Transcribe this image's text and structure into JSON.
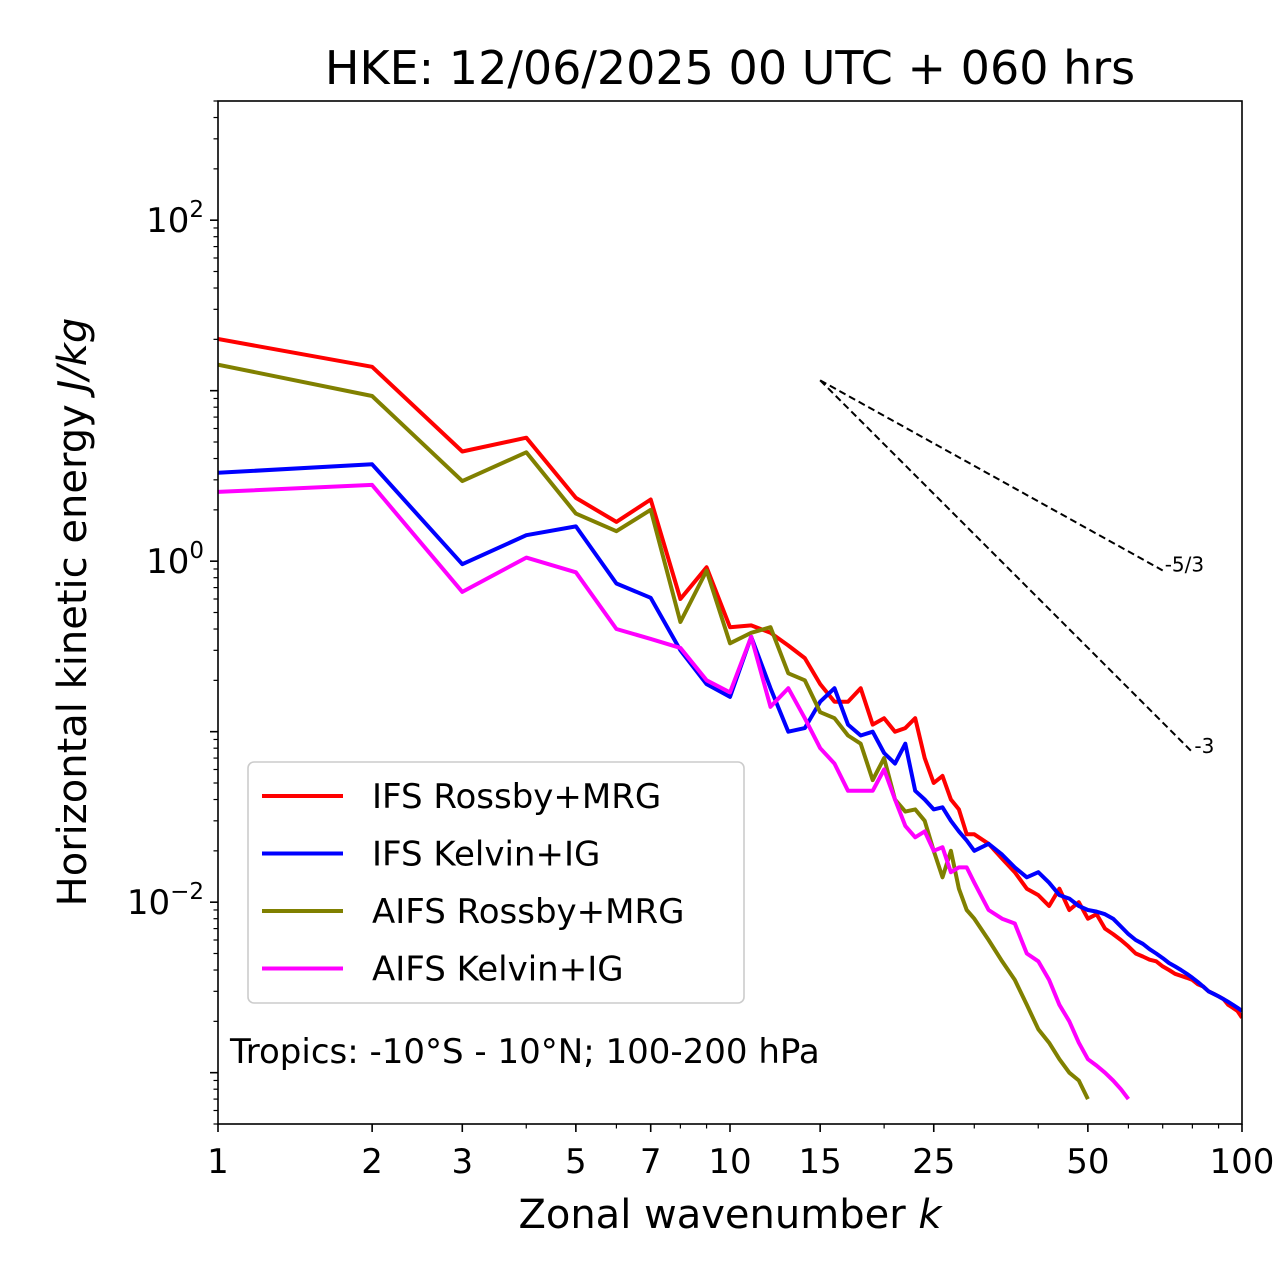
{
  "chart_data": {
    "type": "line",
    "title": "HKE: 12/06/2025 00 UTC + 060 hrs",
    "xlabel_main": "Zonal wavenumber ",
    "xlabel_italic": "k",
    "ylabel_main": "Horizontal kinetic energy ",
    "ylabel_italic": "J/kg",
    "xscale": "log",
    "yscale": "log",
    "xlim": [
      1,
      100
    ],
    "ylim": [
      0.0005,
      500
    ],
    "xticks": [
      1,
      2,
      3,
      5,
      7,
      10,
      15,
      25,
      50,
      100
    ],
    "xtick_labels": [
      "1",
      "2",
      "3",
      "5",
      "7",
      "10",
      "15",
      "25",
      "50",
      "100"
    ],
    "yticks": [
      {
        "value": 100,
        "base": "10",
        "exp": "2"
      },
      {
        "value": 1,
        "base": "10",
        "exp": "0"
      },
      {
        "value": 0.01,
        "base": "10",
        "exp": "−2"
      }
    ],
    "annotation": "Tropics: -10°S - 10°N; 100-200 hPa",
    "legend_position": "lower-left",
    "reference_lines": [
      {
        "label": "-5/3",
        "slope": -1.6667,
        "x": [
          15,
          70
        ],
        "y0": 11.5
      },
      {
        "label": "-3",
        "slope": -3,
        "x": [
          15,
          80
        ],
        "y0": 11.5
      }
    ],
    "series": [
      {
        "name": "IFS Rossby+MRG",
        "color": "#ff0000",
        "x": [
          1,
          2,
          3,
          4,
          5,
          6,
          7,
          8,
          9,
          10,
          11,
          12,
          13,
          14,
          15,
          16,
          17,
          18,
          19,
          20,
          21,
          22,
          23,
          24,
          25,
          26,
          27,
          28,
          29,
          30,
          32,
          34,
          36,
          38,
          40,
          42,
          44,
          46,
          48,
          50,
          52,
          54,
          56,
          58,
          60,
          62,
          64,
          66,
          68,
          70,
          72,
          74,
          76,
          78,
          80,
          82,
          84,
          86,
          88,
          90,
          92,
          94,
          96,
          98,
          100
        ],
        "y": [
          20.1,
          13.8,
          4.4,
          5.3,
          2.35,
          1.7,
          2.3,
          0.6,
          0.92,
          0.41,
          0.42,
          0.38,
          0.32,
          0.27,
          0.19,
          0.15,
          0.15,
          0.18,
          0.11,
          0.12,
          0.1,
          0.105,
          0.12,
          0.07,
          0.05,
          0.055,
          0.04,
          0.035,
          0.025,
          0.025,
          0.022,
          0.018,
          0.015,
          0.012,
          0.011,
          0.0095,
          0.012,
          0.009,
          0.01,
          0.008,
          0.0085,
          0.007,
          0.0065,
          0.006,
          0.0055,
          0.005,
          0.0048,
          0.0046,
          0.0045,
          0.0042,
          0.004,
          0.0038,
          0.0037,
          0.0036,
          0.0035,
          0.0033,
          0.0032,
          0.003,
          0.0029,
          0.0028,
          0.0027,
          0.0025,
          0.0024,
          0.0023,
          0.0021
        ]
      },
      {
        "name": "IFS Kelvin+IG",
        "color": "#0000ff",
        "x": [
          1,
          2,
          3,
          4,
          5,
          6,
          7,
          8,
          9,
          10,
          11,
          12,
          13,
          14,
          15,
          16,
          17,
          18,
          19,
          20,
          21,
          22,
          23,
          24,
          25,
          26,
          27,
          28,
          29,
          30,
          32,
          34,
          36,
          38,
          40,
          42,
          44,
          46,
          48,
          50,
          52,
          54,
          56,
          58,
          60,
          62,
          64,
          66,
          68,
          70,
          72,
          74,
          76,
          78,
          80,
          82,
          84,
          86,
          88,
          90,
          92,
          94,
          96,
          98,
          100
        ],
        "y": [
          3.3,
          3.7,
          0.96,
          1.42,
          1.6,
          0.74,
          0.61,
          0.3,
          0.19,
          0.16,
          0.36,
          0.18,
          0.1,
          0.105,
          0.15,
          0.18,
          0.11,
          0.095,
          0.1,
          0.075,
          0.065,
          0.085,
          0.045,
          0.04,
          0.035,
          0.036,
          0.03,
          0.026,
          0.023,
          0.02,
          0.022,
          0.019,
          0.016,
          0.014,
          0.015,
          0.013,
          0.011,
          0.0105,
          0.0095,
          0.009,
          0.0088,
          0.0085,
          0.008,
          0.0072,
          0.0065,
          0.006,
          0.0057,
          0.0053,
          0.005,
          0.0047,
          0.0044,
          0.0042,
          0.004,
          0.0038,
          0.0036,
          0.0034,
          0.0032,
          0.003,
          0.0029,
          0.0028,
          0.0027,
          0.0026,
          0.0025,
          0.0024,
          0.0023
        ]
      },
      {
        "name": "AIFS Rossby+MRG",
        "color": "#808000",
        "x": [
          1,
          2,
          3,
          4,
          5,
          6,
          7,
          8,
          9,
          10,
          11,
          12,
          13,
          14,
          15,
          16,
          17,
          18,
          19,
          20,
          21,
          22,
          23,
          24,
          25,
          26,
          27,
          28,
          29,
          30,
          32,
          34,
          36,
          38,
          40,
          42,
          44,
          46,
          48,
          50
        ],
        "y": [
          14.2,
          9.3,
          2.95,
          4.35,
          1.9,
          1.5,
          2.0,
          0.44,
          0.88,
          0.33,
          0.38,
          0.41,
          0.22,
          0.2,
          0.13,
          0.12,
          0.095,
          0.085,
          0.052,
          0.07,
          0.04,
          0.034,
          0.035,
          0.03,
          0.02,
          0.014,
          0.02,
          0.012,
          0.009,
          0.008,
          0.006,
          0.0045,
          0.0035,
          0.0025,
          0.0018,
          0.0015,
          0.0012,
          0.001,
          0.0009,
          0.0007
        ]
      },
      {
        "name": "AIFS Kelvin+IG",
        "color": "#ff00ff",
        "x": [
          1,
          2,
          3,
          4,
          5,
          6,
          7,
          8,
          9,
          10,
          11,
          12,
          13,
          14,
          15,
          16,
          17,
          18,
          19,
          20,
          21,
          22,
          23,
          24,
          25,
          26,
          27,
          28,
          29,
          30,
          32,
          34,
          36,
          38,
          40,
          42,
          44,
          46,
          48,
          50,
          52,
          54,
          56,
          58,
          60
        ],
        "y": [
          2.55,
          2.8,
          0.66,
          1.05,
          0.86,
          0.4,
          0.35,
          0.31,
          0.2,
          0.17,
          0.36,
          0.14,
          0.18,
          0.12,
          0.08,
          0.065,
          0.045,
          0.045,
          0.045,
          0.06,
          0.04,
          0.028,
          0.024,
          0.026,
          0.02,
          0.021,
          0.015,
          0.016,
          0.016,
          0.013,
          0.009,
          0.008,
          0.0075,
          0.005,
          0.0045,
          0.0035,
          0.0025,
          0.002,
          0.0015,
          0.0012,
          0.0011,
          0.001,
          0.0009,
          0.0008,
          0.0007
        ]
      }
    ]
  }
}
